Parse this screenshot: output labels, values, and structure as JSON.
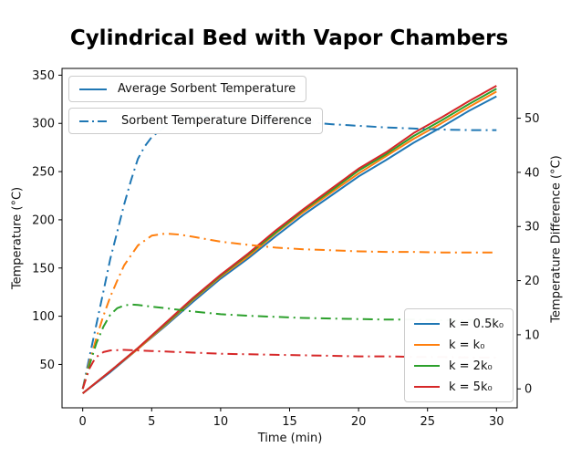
{
  "chart_data": {
    "type": "line",
    "title": "Cylindrical Bed with Vapor Chambers",
    "xlabel": "Time (min)",
    "ylabel_left": "Temperature (°C)",
    "ylabel_right": "Temperature Difference (°C)",
    "xlim": [
      -1.5,
      31.5
    ],
    "ylim_left": [
      5,
      357
    ],
    "ylim_right": [
      -3.5,
      59.2
    ],
    "xticks": [
      0,
      5,
      10,
      15,
      20,
      25,
      30
    ],
    "yticks_left": [
      50,
      100,
      150,
      200,
      250,
      300,
      350
    ],
    "yticks_right": [
      0,
      10,
      20,
      30,
      40,
      50
    ],
    "grid": false,
    "legend_style_labels": [
      "Average Sorbent Temperature",
      "Sorbent Temperature Difference"
    ],
    "legend_k_labels": [
      "k = 0.5k₀",
      "k = k₀",
      "k = 2k₀",
      "k = 5k₀"
    ],
    "colors": {
      "blue": "#1f77b4",
      "orange": "#ff7f0e",
      "green": "#2ca02c",
      "red": "#d62728"
    },
    "series": [
      {
        "id": "avg-temp-k05",
        "name": "Average Sorbent Temperature k = 0.5k₀",
        "axis": "left",
        "style": "solid",
        "color": "#1f77b4",
        "x": [
          0,
          2,
          4,
          6,
          8,
          10,
          12,
          14,
          16,
          18,
          20,
          22,
          24,
          26,
          28,
          30
        ],
        "y": [
          20,
          42,
          66,
          90,
          115,
          139,
          160,
          183,
          205,
          225,
          245,
          262,
          280,
          296,
          313,
          328
        ]
      },
      {
        "id": "avg-temp-k1",
        "name": "Average Sorbent Temperature k = k₀",
        "axis": "left",
        "style": "solid",
        "color": "#ff7f0e",
        "x": [
          0,
          2,
          4,
          6,
          8,
          10,
          12,
          14,
          16,
          18,
          20,
          22,
          24,
          26,
          28,
          30
        ],
        "y": [
          20,
          43,
          66,
          91,
          117,
          141,
          162,
          186,
          208,
          228,
          248,
          266,
          284,
          300,
          317,
          333
        ]
      },
      {
        "id": "avg-temp-k2",
        "name": "Average Sorbent Temperature k = 2k₀",
        "axis": "left",
        "style": "solid",
        "color": "#2ca02c",
        "x": [
          0,
          2,
          4,
          6,
          8,
          10,
          12,
          14,
          16,
          18,
          20,
          22,
          24,
          26,
          28,
          30
        ],
        "y": [
          20,
          43,
          67,
          92,
          118,
          142,
          164,
          187,
          210,
          230,
          251,
          268,
          287,
          303,
          320,
          336
        ]
      },
      {
        "id": "avg-temp-k5",
        "name": "Average Sorbent Temperature k = 5k₀",
        "axis": "left",
        "style": "solid",
        "color": "#d62728",
        "x": [
          0,
          2,
          4,
          6,
          8,
          10,
          12,
          14,
          16,
          18,
          20,
          22,
          24,
          26,
          28,
          30
        ],
        "y": [
          20,
          43,
          67,
          93,
          119,
          143,
          165,
          189,
          211,
          232,
          253,
          270,
          290,
          306,
          323,
          339
        ]
      },
      {
        "id": "temp-diff-k05",
        "name": "Sorbent Temperature Difference k = 0.5k₀",
        "axis": "right",
        "style": "dashdot",
        "color": "#1f77b4",
        "x": [
          0,
          0.5,
          1,
          1.5,
          2,
          2.5,
          3,
          3.5,
          4,
          4.5,
          5,
          6,
          7,
          8,
          9,
          10,
          12,
          14,
          16,
          18,
          20,
          22,
          24,
          26,
          28,
          30
        ],
        "y": [
          0,
          6,
          12,
          18,
          24,
          29,
          34,
          38.5,
          42.5,
          44.8,
          46.5,
          48.5,
          49.5,
          50.1,
          50.3,
          50.3,
          50,
          49.6,
          49.3,
          48.9,
          48.6,
          48.3,
          48.1,
          47.9,
          47.8,
          47.8
        ]
      },
      {
        "id": "temp-diff-k1",
        "name": "Sorbent Temperature Difference k = k₀",
        "axis": "right",
        "style": "dashdot",
        "color": "#ff7f0e",
        "x": [
          0,
          0.5,
          1,
          1.5,
          2,
          2.5,
          3,
          4,
          5,
          6,
          7,
          8,
          10,
          12,
          14,
          16,
          18,
          20,
          22,
          24,
          26,
          28,
          30
        ],
        "y": [
          0,
          5,
          9.5,
          13.5,
          17,
          20,
          22.8,
          26.5,
          28.3,
          28.7,
          28.5,
          28.1,
          27.2,
          26.6,
          26.1,
          25.8,
          25.6,
          25.4,
          25.3,
          25.3,
          25.2,
          25.2,
          25.2
        ]
      },
      {
        "id": "temp-diff-k2",
        "name": "Sorbent Temperature Difference k = 2k₀",
        "axis": "right",
        "style": "dashdot",
        "color": "#2ca02c",
        "x": [
          0,
          0.5,
          1,
          1.5,
          2,
          2.5,
          3,
          3.5,
          4,
          5,
          6,
          8,
          10,
          12,
          14,
          16,
          18,
          20,
          22,
          24,
          26,
          28,
          30
        ],
        "y": [
          0,
          4.5,
          8.5,
          11.5,
          13.7,
          14.9,
          15.4,
          15.6,
          15.5,
          15.2,
          14.9,
          14.3,
          13.8,
          13.5,
          13.3,
          13.1,
          13,
          12.9,
          12.8,
          12.8,
          12.7,
          12.7,
          12.7
        ]
      },
      {
        "id": "temp-diff-k5",
        "name": "Sorbent Temperature Difference k = 5k₀",
        "axis": "right",
        "style": "dashdot",
        "color": "#d62728",
        "x": [
          0,
          0.25,
          0.5,
          0.75,
          1,
          1.5,
          2,
          3,
          4,
          5,
          6,
          8,
          10,
          12,
          14,
          16,
          18,
          20,
          22,
          24,
          26,
          28,
          30
        ],
        "y": [
          0,
          2,
          3.8,
          5,
          5.9,
          6.8,
          7.1,
          7.2,
          7.1,
          7,
          6.9,
          6.7,
          6.5,
          6.4,
          6.3,
          6.2,
          6.1,
          6,
          6,
          5.9,
          5.9,
          5.8,
          5.8
        ]
      }
    ]
  }
}
